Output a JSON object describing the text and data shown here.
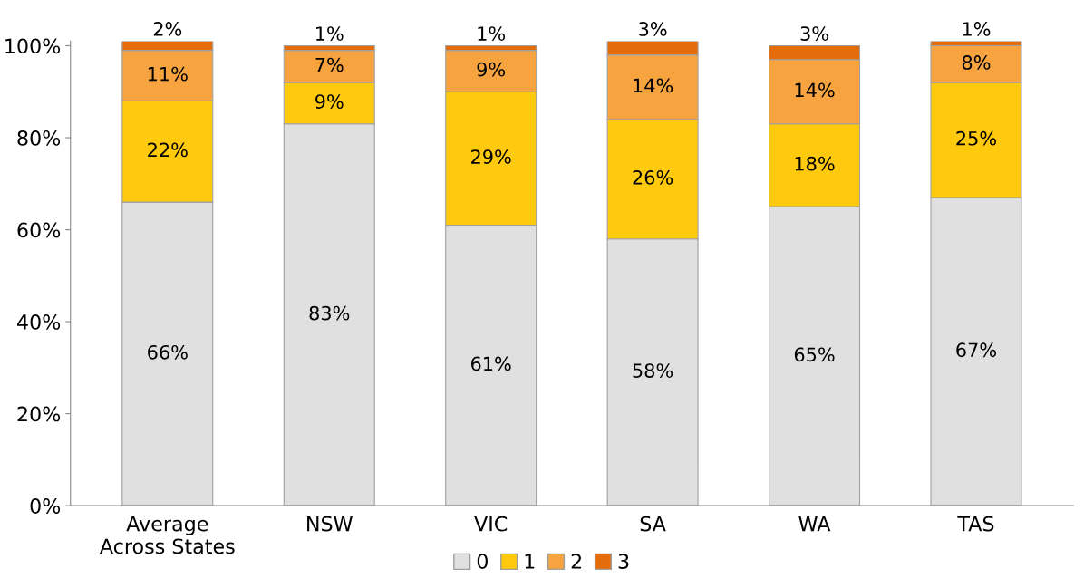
{
  "chart_data": {
    "type": "bar",
    "stacked": true,
    "categories": [
      "Average\nAcross States",
      "NSW",
      "VIC",
      "SA",
      "WA",
      "TAS"
    ],
    "series": [
      {
        "name": "0",
        "color": "#e0e0e0",
        "values": [
          66,
          83,
          61,
          58,
          65,
          67
        ],
        "value_labels": [
          "66%",
          "83%",
          "61%",
          "58%",
          "65%",
          "67%"
        ]
      },
      {
        "name": "1",
        "color": "#ffc90e",
        "values": [
          22,
          9,
          29,
          26,
          18,
          25
        ],
        "value_labels": [
          "22%",
          "9%",
          "29%",
          "26%",
          "18%",
          "25%"
        ]
      },
      {
        "name": "2",
        "color": "#f7a440",
        "values": [
          11,
          7,
          9,
          14,
          14,
          8
        ],
        "value_labels": [
          "11%",
          "7%",
          "9%",
          "14%",
          "14%",
          "8%"
        ]
      },
      {
        "name": "3",
        "color": "#e46c0a",
        "values": [
          2,
          1,
          1,
          3,
          3,
          1
        ],
        "value_labels": [
          "2%",
          "1%",
          "1%",
          "3%",
          "3%",
          "1%"
        ]
      }
    ],
    "ylim": [
      0,
      101
    ],
    "yticks": [
      {
        "value": 0,
        "label": "0%"
      },
      {
        "value": 20,
        "label": "20%"
      },
      {
        "value": 40,
        "label": "40%"
      },
      {
        "value": 60,
        "label": "60%"
      },
      {
        "value": 80,
        "label": "80%"
      },
      {
        "value": 100,
        "label": "100%"
      }
    ],
    "grid": false,
    "legend": "bottom"
  }
}
